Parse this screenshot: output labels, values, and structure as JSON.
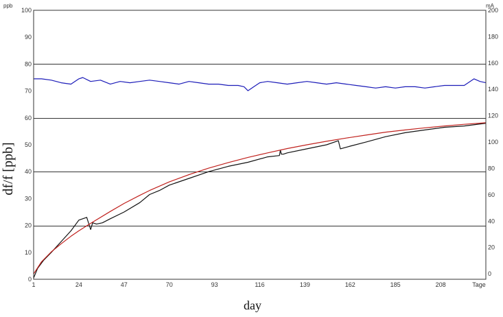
{
  "chart_data": {
    "type": "line",
    "title": "",
    "xlabel": "day",
    "ylabel": "df/f  [ppb]",
    "y_unit_left": "ppb",
    "y_unit_right": "mA",
    "x_ticks": [
      1,
      24,
      47,
      70,
      93,
      116,
      139,
      162,
      185,
      208
    ],
    "x_end_label": "Tage",
    "xlim": [
      1,
      231
    ],
    "ylim": [
      0,
      100
    ],
    "y_ticks": [
      0,
      10,
      20,
      30,
      40,
      50,
      60,
      70,
      80,
      90,
      100
    ],
    "y2_ticks": [
      0,
      20,
      40,
      60,
      80,
      100,
      120,
      140,
      160,
      180,
      200
    ],
    "y2_zero_at_left": 2,
    "y2_max_at_left": 100,
    "grid": true,
    "legend": "none",
    "series": [
      {
        "color": "#1a1ab8",
        "axis": "right",
        "x": [
          1,
          5,
          10,
          15,
          20,
          24,
          26,
          30,
          35,
          40,
          45,
          50,
          55,
          60,
          65,
          70,
          75,
          80,
          85,
          90,
          95,
          100,
          105,
          108,
          110,
          113,
          116,
          120,
          125,
          130,
          135,
          140,
          145,
          150,
          155,
          160,
          165,
          170,
          175,
          180,
          185,
          190,
          195,
          200,
          205,
          210,
          215,
          220,
          225,
          228,
          231
        ],
        "values": [
          148,
          148,
          147,
          145,
          144,
          148,
          149,
          146,
          147,
          144,
          146,
          145,
          146,
          147,
          146,
          145,
          144,
          146,
          145,
          144,
          144,
          143,
          143,
          142,
          139,
          142,
          145,
          146,
          145,
          144,
          145,
          146,
          145,
          144,
          145,
          144,
          143,
          142,
          141,
          142,
          141,
          142,
          142,
          141,
          142,
          143,
          143,
          143,
          148,
          146,
          145
        ]
      },
      {
        "color": "#111111",
        "axis": "left",
        "x": [
          1,
          3,
          6,
          10,
          15,
          20,
          24,
          26,
          28,
          30,
          31,
          33,
          36,
          40,
          47,
          55,
          60,
          65,
          70,
          80,
          90,
          100,
          110,
          120,
          126,
          126.5,
          127,
          128,
          130,
          140,
          150,
          156,
          157,
          162,
          170,
          180,
          190,
          200,
          210,
          220,
          231
        ],
        "values": [
          0.5,
          4,
          7,
          10,
          14,
          18,
          22,
          22.5,
          23,
          18.5,
          21,
          20.5,
          21,
          22.5,
          25,
          28.5,
          31.5,
          33,
          35,
          37.5,
          40,
          42,
          43.5,
          45.5,
          46,
          48,
          46.5,
          46.5,
          47,
          48.5,
          50,
          51.5,
          48.5,
          49.5,
          51,
          53,
          54.5,
          55.5,
          56.5,
          57,
          58
        ]
      },
      {
        "color": "#c0201c",
        "axis": "left",
        "x": [
          1,
          5,
          10,
          15,
          20,
          24,
          30,
          40,
          47,
          55,
          60,
          70,
          80,
          90,
          100,
          110,
          120,
          130,
          140,
          150,
          160,
          170,
          180,
          190,
          200,
          210,
          220,
          231
        ],
        "values": [
          2,
          6.5,
          10.2,
          13.2,
          16,
          18,
          20.8,
          25.2,
          28.2,
          31.2,
          33,
          36.2,
          38.9,
          41.3,
          43.4,
          45.3,
          47,
          48.6,
          50,
          51.3,
          52.5,
          53.6,
          54.7,
          55.5,
          56.3,
          57,
          57.6,
          58.2
        ]
      }
    ]
  }
}
